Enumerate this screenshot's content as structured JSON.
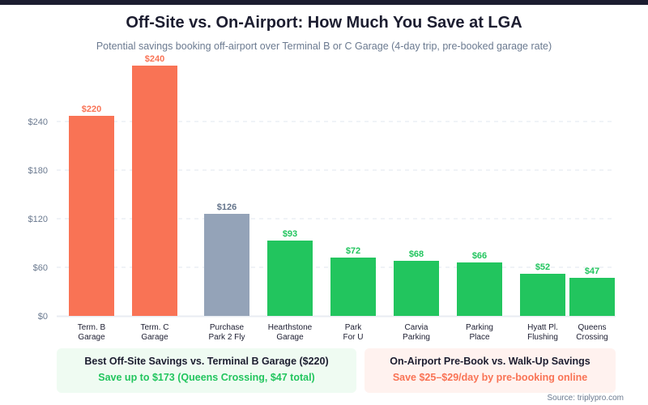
{
  "header": {
    "title": "Off-Site vs. On-Airport: How Much You Save at LGA",
    "subtitle": "Potential savings booking off-airport over Terminal B or C Garage (4-day trip, pre-booked garage rate)"
  },
  "colors": {
    "on_airport": "#f97355",
    "reference": "#94a3b8",
    "off_site": "#22c55e",
    "axis_text": "#6b7a90",
    "grid": "#e8ecf2",
    "reference_label": "#64748b"
  },
  "chart_data": {
    "type": "bar",
    "title": "Off-Site vs. On-Airport: How Much You Save at LGA",
    "subtitle": "Potential savings booking off-airport over Terminal B or C Garage (4-day trip, pre-booked garage rate)",
    "xlabel": "",
    "ylabel": "",
    "ylim": [
      0,
      240
    ],
    "yticks": [
      0,
      60,
      120,
      180,
      240
    ],
    "ytick_labels": [
      "$0",
      "$60",
      "$120",
      "$180",
      "$240"
    ],
    "grid": true,
    "categories": [
      [
        "Term. B",
        "Garage"
      ],
      [
        "Term. C",
        "Garage"
      ],
      [
        "Purchase",
        "Park 2 Fly"
      ],
      [
        "Hearthstone",
        "Garage"
      ],
      [
        "Park",
        "For U"
      ],
      [
        "Carvia",
        "Parking"
      ],
      [
        "Parking",
        "Place"
      ],
      [
        "Hyatt Pl.",
        "Flushing"
      ],
      [
        "Queens",
        "Crossing"
      ]
    ],
    "values": [
      220,
      240,
      126,
      93,
      72,
      68,
      66,
      52,
      47
    ],
    "value_labels": [
      "$220",
      "$240",
      "$126",
      "$93",
      "$72",
      "$68",
      "$66",
      "$52",
      "$47"
    ],
    "groups": [
      "on_airport",
      "on_airport",
      "reference",
      "off_site",
      "off_site",
      "off_site",
      "off_site",
      "off_site",
      "off_site"
    ]
  },
  "callouts": {
    "best_offsite": {
      "heading": "Best Off-Site Savings vs. Terminal B Garage ($220)",
      "detail": "Save up to $173 (Queens Crossing, $47 total)"
    },
    "prebook": {
      "heading": "On-Airport Pre-Book vs. Walk-Up Savings",
      "detail": "Save $25–$29/day by pre-booking online"
    }
  },
  "source": "Source: triplypro.com"
}
